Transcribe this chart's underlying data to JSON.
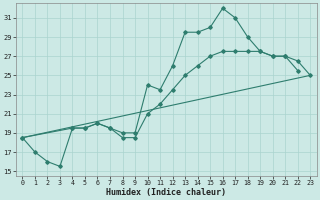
{
  "line1_x": [
    0,
    1,
    2,
    3,
    4,
    5,
    6,
    7,
    8,
    9,
    10,
    11,
    12,
    13,
    14,
    15,
    16,
    17,
    18,
    19,
    20,
    21,
    22
  ],
  "line1_y": [
    18.5,
    17.0,
    16.0,
    15.5,
    19.5,
    19.5,
    20.0,
    19.5,
    19.0,
    19.0,
    24.0,
    23.5,
    26.0,
    29.5,
    29.5,
    30.0,
    32.0,
    31.0,
    29.0,
    27.5,
    27.0,
    27.0,
    25.5
  ],
  "line2_x": [
    0,
    4,
    5,
    6,
    7,
    8,
    9,
    10,
    11,
    12,
    13,
    14,
    15,
    16,
    17,
    18,
    19,
    20,
    21,
    22,
    23
  ],
  "line2_y": [
    18.5,
    19.5,
    19.5,
    20.0,
    19.5,
    18.5,
    18.5,
    21.0,
    22.0,
    23.5,
    25.0,
    26.0,
    27.0,
    27.5,
    27.5,
    27.5,
    27.5,
    27.0,
    27.0,
    26.5,
    25.0
  ],
  "line3_x": [
    0,
    23
  ],
  "line3_y": [
    18.5,
    25.0
  ],
  "line_color": "#2e7d6e",
  "bg_color": "#cce9e5",
  "grid_color": "#aad4cf",
  "xlabel": "Humidex (Indice chaleur)",
  "xlim": [
    -0.5,
    23.5
  ],
  "ylim": [
    14.5,
    32.5
  ],
  "yticks": [
    15,
    17,
    19,
    21,
    23,
    25,
    27,
    29,
    31
  ],
  "xticks": [
    0,
    1,
    2,
    3,
    4,
    5,
    6,
    7,
    8,
    9,
    10,
    11,
    12,
    13,
    14,
    15,
    16,
    17,
    18,
    19,
    20,
    21,
    22,
    23
  ]
}
